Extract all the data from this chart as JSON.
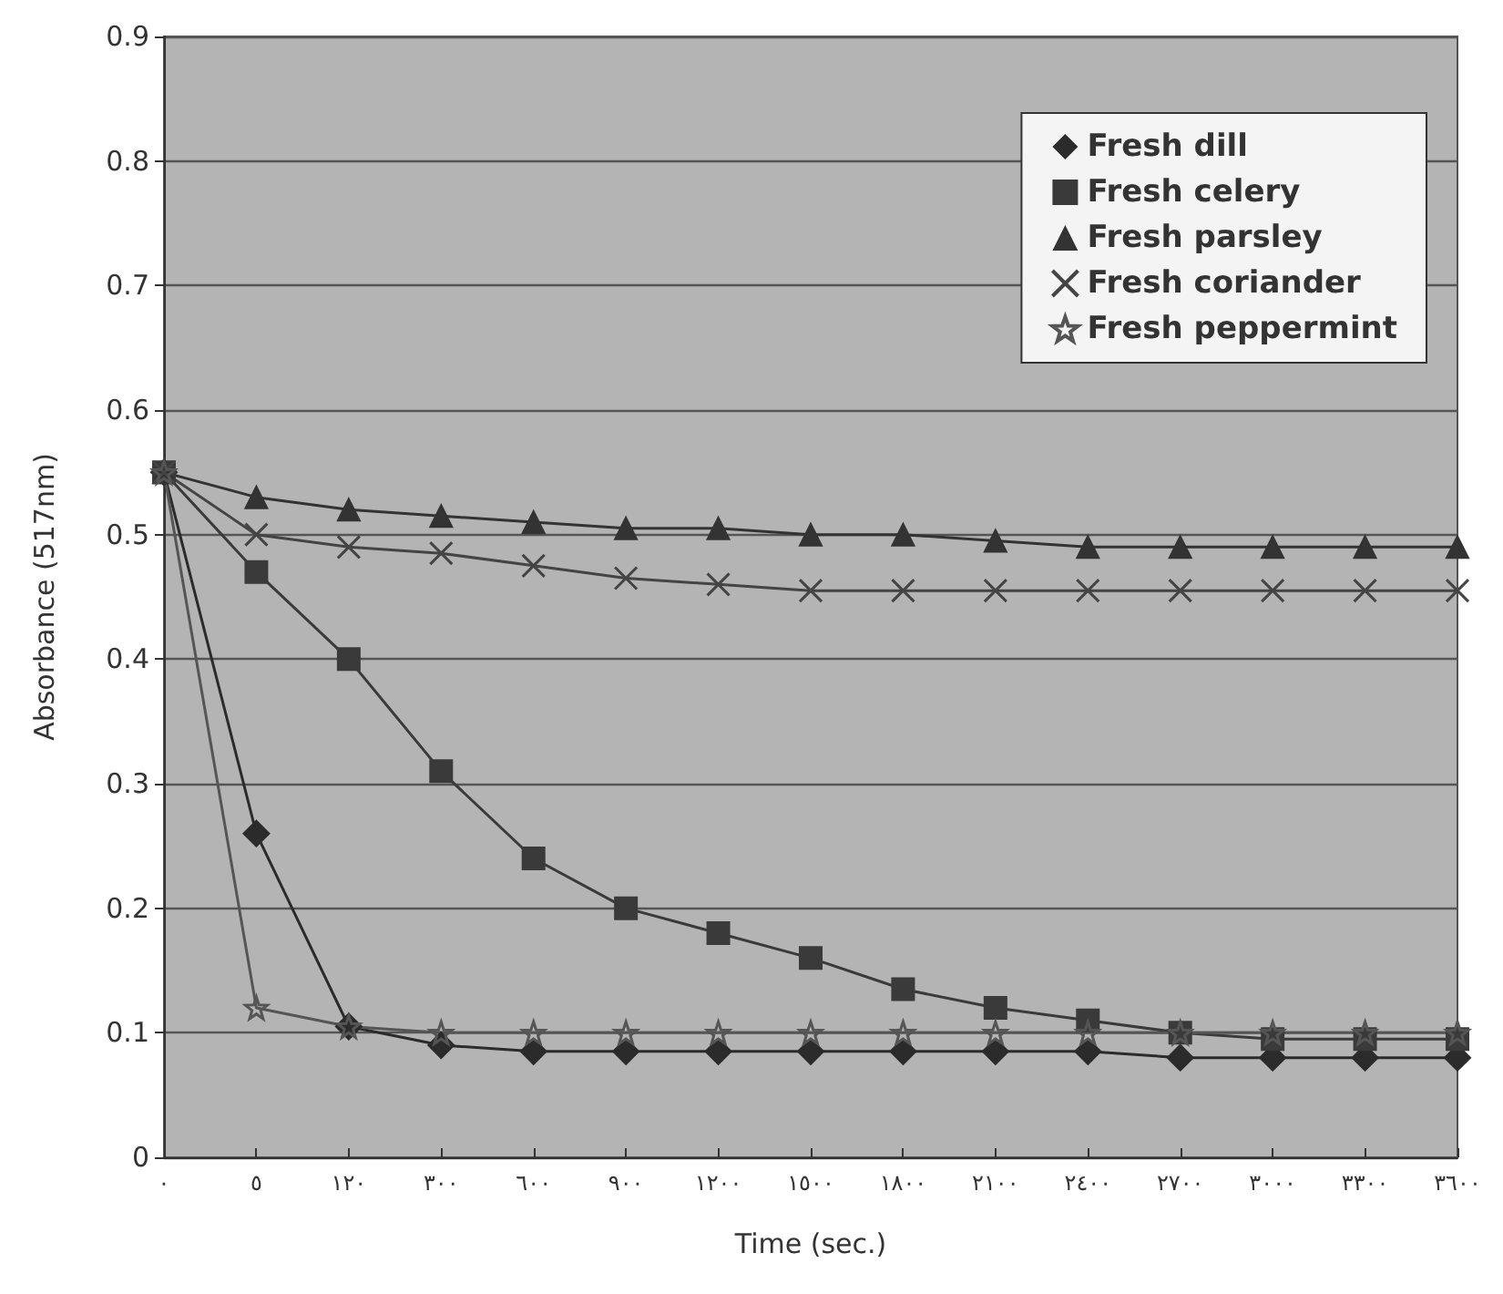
{
  "chart_data": {
    "type": "line",
    "xlabel": "Time (sec.)",
    "ylabel": "Absorbance (517nm)",
    "categories": [
      "٠",
      "٥",
      "١٢٠",
      "٣٠٠",
      "٦٠٠",
      "٩٠٠",
      "١٢٠٠",
      "١٥٠٠",
      "١٨٠٠",
      "٢١٠٠",
      "٢٤٠٠",
      "٢٧٠٠",
      "٣٠٠٠",
      "٣٣٠٠",
      "٣٦٠٠"
    ],
    "ylim": [
      0,
      0.9
    ],
    "yticks": [
      0,
      0.1,
      0.2,
      0.3,
      0.4,
      0.5,
      0.6,
      0.7,
      0.8,
      0.9
    ],
    "grid": "y",
    "legend": "top right",
    "series": [
      {
        "name": "Fresh dill",
        "color": "#2b2b2b",
        "marker": "diamond",
        "values": [
          0.55,
          0.26,
          0.105,
          0.09,
          0.085,
          0.085,
          0.085,
          0.085,
          0.085,
          0.085,
          0.085,
          0.08,
          0.08,
          0.08,
          0.08
        ]
      },
      {
        "name": "Fresh celery",
        "color": "#3a3a3a",
        "marker": "square",
        "values": [
          0.55,
          0.47,
          0.4,
          0.31,
          0.24,
          0.2,
          0.18,
          0.16,
          0.135,
          0.12,
          0.11,
          0.1,
          0.095,
          0.095,
          0.095
        ]
      },
      {
        "name": "Fresh parsley",
        "color": "#333333",
        "marker": "triangle",
        "values": [
          0.55,
          0.53,
          0.52,
          0.515,
          0.51,
          0.505,
          0.505,
          0.5,
          0.5,
          0.495,
          0.49,
          0.49,
          0.49,
          0.49,
          0.49
        ]
      },
      {
        "name": "Fresh coriander",
        "color": "#444444",
        "marker": "cross",
        "values": [
          0.55,
          0.5,
          0.49,
          0.485,
          0.475,
          0.465,
          0.46,
          0.455,
          0.455,
          0.455,
          0.455,
          0.455,
          0.455,
          0.455,
          0.455
        ]
      },
      {
        "name": "Fresh peppermint",
        "color": "#555555",
        "marker": "star",
        "values": [
          0.55,
          0.12,
          0.105,
          0.1,
          0.1,
          0.1,
          0.1,
          0.1,
          0.1,
          0.1,
          0.1,
          0.1,
          0.1,
          0.1,
          0.1
        ]
      }
    ]
  }
}
